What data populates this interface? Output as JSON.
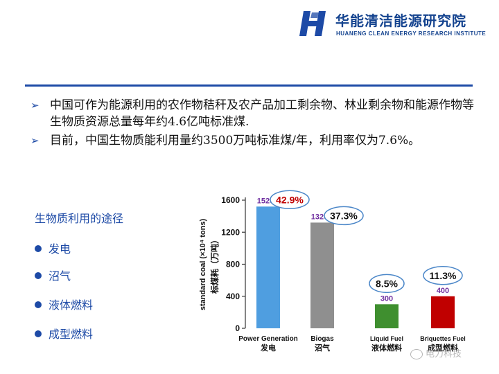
{
  "header": {
    "org_name_cn": "华能清洁能源研究院",
    "org_name_en": "HUANENG CLEAN ENERGY RESEARCH INSTITUTE"
  },
  "bullets": [
    "中国可作为能源利用的农作物秸秆及农产品加工剩余物、林业剩余物和能源作物等生物质资源总量每年约4.6亿吨标准煤.",
    "目前，中国生物质能利用量约3500万吨标准煤/年，利用率仅为7.6%。"
  ],
  "uses": {
    "title": "生物质利用的途径",
    "items": [
      "发电",
      "沼气",
      "液体燃料",
      "成型燃料"
    ]
  },
  "chart_data": {
    "type": "bar",
    "categories": [
      "Power Generation",
      "Biogas",
      "Liquid Fuel",
      "Briquettes Fuel"
    ],
    "categories_cn": [
      "发电",
      "沼气",
      "液体燃料",
      "成型燃料"
    ],
    "values": [
      1520,
      1320,
      300,
      400
    ],
    "value_labels": [
      "1520",
      "1320",
      "300",
      "400"
    ],
    "percent_labels": [
      "42.9%",
      "37.3%",
      "8.5%",
      "11.3%"
    ],
    "bar_colors": [
      "#4f9ee0",
      "#8f8f8f",
      "#3f8f2f",
      "#c00000"
    ],
    "ylabel_en": "standard coal (×10⁴ tons)",
    "ylabel_cn": "标煤耗（万吨）",
    "yticks": [
      0,
      400,
      800,
      1200,
      1600
    ],
    "ylim": [
      0,
      1600
    ],
    "grid": false
  },
  "watermark": "电力科技",
  "colors": {
    "brand": "#14438f",
    "accent": "#1d4aa6",
    "value_label": "#7030a0",
    "highlight_pct": "#c00000",
    "ellipse": "#4a86c8"
  }
}
